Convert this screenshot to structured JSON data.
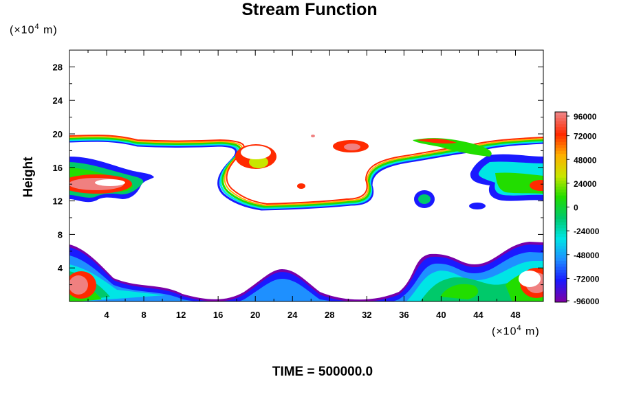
{
  "chart_data": {
    "type": "heatmap",
    "title": "Stream Function",
    "ylabel": "Height",
    "xlabel": "",
    "unit_x_prefix": "(×10",
    "unit_exp": "4",
    "unit_suffix": " m)",
    "y_unit_prefix": "(×10",
    "footer": "TIME = 500000.0",
    "xlim": [
      0,
      51
    ],
    "ylim": [
      0,
      30
    ],
    "x_ticks": [
      "4",
      "8",
      "12",
      "16",
      "20",
      "24",
      "28",
      "32",
      "36",
      "40",
      "44",
      "48"
    ],
    "y_ticks": [
      "4",
      "8",
      "12",
      "16",
      "20",
      "24",
      "28"
    ],
    "colorbar_labels": [
      "96000",
      "72000",
      "48000",
      "24000",
      "0",
      "-24000",
      "-48000",
      "-72000",
      "-96000"
    ],
    "colorbar_range": [
      -96000,
      96000
    ],
    "colors": [
      "#7a00a8",
      "#1a1aff",
      "#1e90ff",
      "#00e5e5",
      "#00c96a",
      "#22dd00",
      "#c8e600",
      "#ffb000",
      "#ff2a00",
      "#f08080"
    ]
  }
}
